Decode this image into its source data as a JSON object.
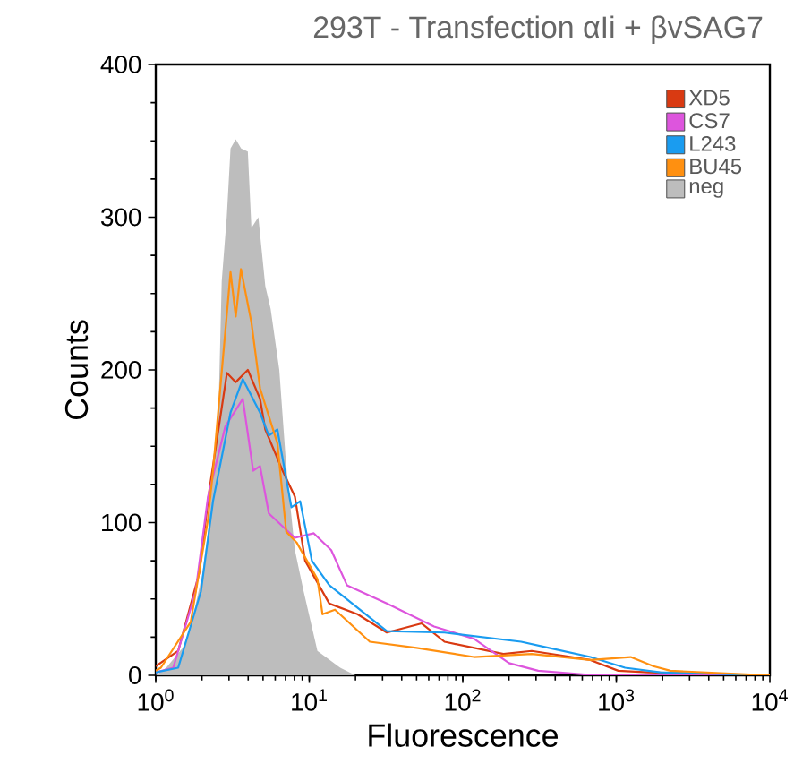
{
  "chart_data": {
    "type": "line",
    "title": "293T - Transfection αIi + βvSAG7",
    "xlabel": "Fluorescence",
    "ylabel": "Counts",
    "log": "x",
    "xlim": [
      1,
      10000
    ],
    "xticks": [
      {
        "value": 1,
        "label": "10$^{0}$"
      },
      {
        "value": 10,
        "label": "10$^{1}$"
      },
      {
        "value": 100,
        "label": "10$^{2}$"
      },
      {
        "value": 1000,
        "label": "10$^{3}$"
      },
      {
        "value": 10000,
        "label": "10$^{4}$"
      }
    ],
    "ylim": [
      0,
      400
    ],
    "yticks": [
      0,
      100,
      200,
      300,
      400
    ],
    "legend": "top right",
    "grid": false,
    "marker": "none",
    "line_style": "solid",
    "series": [
      {
        "name": "XD5",
        "color": "#d93a12",
        "x": [
          1.0,
          1.4,
          1.92,
          2.24,
          2.91,
          3.32,
          3.98,
          4.78,
          5.17,
          6.7,
          8.06,
          9.4,
          13.5,
          20.6,
          32,
          54,
          76,
          184,
          281,
          678,
          1030,
          1600,
          10000
        ],
        "values": [
          6,
          16,
          67,
          122,
          198,
          192,
          200,
          181,
          161,
          134,
          117,
          75,
          47,
          40,
          28,
          34,
          22,
          14,
          16,
          10,
          3,
          2,
          0
        ]
      },
      {
        "name": "CS7",
        "color": "#dd55dd",
        "x": [
          1.0,
          1.3,
          1.82,
          2.19,
          2.84,
          3.69,
          4.31,
          4.78,
          5.45,
          8.06,
          10.7,
          13.9,
          17.6,
          32,
          65,
          118,
          200,
          310,
          735,
          10000
        ],
        "values": [
          2,
          5,
          55,
          117,
          163,
          181,
          134,
          137,
          106,
          90,
          93,
          82,
          59,
          47,
          32,
          24,
          8,
          3,
          0,
          0
        ]
      },
      {
        "name": "L243",
        "color": "#1a9cf0",
        "x": [
          1.0,
          1.4,
          1.97,
          2.36,
          3.07,
          3.69,
          4.78,
          5.45,
          6.2,
          7.65,
          8.72,
          10.4,
          13.5,
          32,
          76,
          240,
          364,
          678,
          1140,
          1930,
          10000
        ],
        "values": [
          2,
          5,
          55,
          114,
          172,
          194,
          172,
          157,
          161,
          110,
          114,
          75,
          59,
          29,
          28,
          22,
          18,
          12,
          5,
          2,
          0
        ]
      },
      {
        "name": "BU45",
        "color": "#ff9010",
        "x": [
          1.0,
          1.08,
          1.69,
          2.19,
          2.36,
          3.07,
          3.32,
          3.59,
          4.2,
          4.78,
          6.2,
          7.08,
          8.27,
          11.3,
          12.2,
          14.7,
          24.8,
          50,
          118,
          281,
          678,
          1240,
          1740,
          2250,
          10000
        ],
        "values": [
          3,
          5,
          35,
          102,
          134,
          264,
          235,
          266,
          231,
          188,
          152,
          94,
          87,
          63,
          40,
          43,
          22,
          18,
          12,
          14,
          10,
          12,
          6,
          3,
          0
        ]
      },
      {
        "name": "neg",
        "color": "#bdbdbd",
        "type": "area",
        "x": [
          1,
          1.17,
          1.5,
          1.69,
          2.0,
          2.19,
          2.56,
          2.69,
          2.9,
          3.07,
          3.32,
          3.6,
          3.98,
          4.2,
          4.66,
          5.17,
          5.6,
          6.38,
          7.08,
          8.06,
          9.19,
          11.3,
          15.9,
          20
        ],
        "values": [
          0,
          5,
          18,
          32,
          65,
          94,
          172,
          258,
          300,
          345,
          351,
          345,
          343,
          293,
          300,
          255,
          240,
          200,
          137,
          82,
          55,
          16,
          5,
          0
        ]
      }
    ]
  }
}
